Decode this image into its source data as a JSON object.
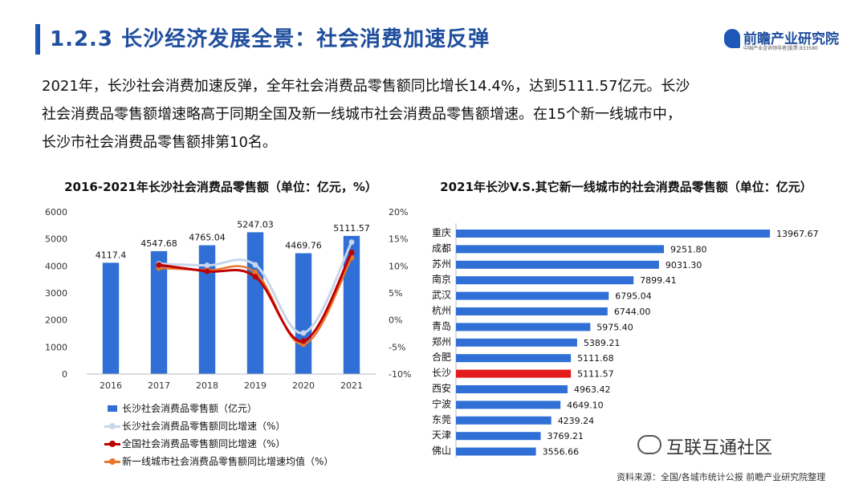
{
  "header": {
    "title": "1.2.3 长沙经济发展全景：社会消费加速反弹",
    "logo_name": "前瞻产业研究院",
    "logo_sub": "中国产业咨询领导者|股票:833580"
  },
  "intro": {
    "line1": "2021年，长沙社会消费加速反弹，全年社会消费品零售额同比增长14.4%，达到5111.57亿元。长沙",
    "line2": "社会消费品零售额增速略高于同期全国及新一线城市社会消费品零售额增速。在15个新一线城市中，",
    "line3": "长沙市社会消费品零售额排第10名。"
  },
  "footer": {
    "source": "资料来源：全国/各城市统计公报  前瞻产业研究院整理",
    "watermark": "互联互通社区"
  },
  "colors": {
    "title": "#1f4e9e",
    "bar": "#2f6fd6",
    "highlight": "#e31b1b",
    "series_changsha_growth": "#c8d6ec",
    "series_national": "#c00000",
    "series_newtier1": "#e8762c"
  },
  "chart_data": [
    {
      "type": "bar",
      "title": "2016-2021年长沙社会消费品零售额（单位：亿元，%）",
      "categories": [
        "2016",
        "2017",
        "2018",
        "2019",
        "2020",
        "2021"
      ],
      "series": [
        {
          "name": "长沙社会消费品零售额（亿元）",
          "type": "bar",
          "axis": "left",
          "values": [
            4117.4,
            4547.68,
            4765.04,
            5247.03,
            4469.76,
            5111.57
          ],
          "labels": [
            "4117.4",
            "4547.68",
            "4765.04",
            "5247.03",
            "4469.76",
            "5111.57"
          ]
        },
        {
          "name": "长沙社会消费品零售额同比增速（%）",
          "type": "line",
          "axis": "right",
          "values": [
            null,
            10.4,
            10.1,
            10.2,
            -2.4,
            14.4
          ]
        },
        {
          "name": "全国社会消费品零售额同比增速（%）",
          "type": "line",
          "axis": "right",
          "values": [
            null,
            10.2,
            9.0,
            8.0,
            -3.9,
            12.5
          ]
        },
        {
          "name": "新一线城市社会消费品零售额同比增速均值（%）",
          "type": "line",
          "axis": "right",
          "values": [
            null,
            9.6,
            9.2,
            8.8,
            -4.5,
            11.5
          ]
        }
      ],
      "left_axis": {
        "ylim": [
          0,
          6000
        ],
        "ticks": [
          "0",
          "1000",
          "2000",
          "3000",
          "4000",
          "5000",
          "6000"
        ]
      },
      "right_axis": {
        "ylim": [
          -10,
          20
        ],
        "ticks": [
          "-10%",
          "-5%",
          "0%",
          "5%",
          "10%",
          "15%",
          "20%"
        ]
      },
      "grid": false,
      "legend": "bottom"
    },
    {
      "type": "bar",
      "orientation": "horizontal",
      "title": "2021年长沙V.S.其它新一线城市的社会消费品零售额（单位：亿元）",
      "categories": [
        "重庆",
        "成都",
        "苏州",
        "南京",
        "武汉",
        "杭州",
        "青岛",
        "郑州",
        "合肥",
        "长沙",
        "西安",
        "宁波",
        "东莞",
        "天津",
        "佛山"
      ],
      "values": [
        13967.67,
        9251.8,
        9031.3,
        7899.41,
        6795.04,
        6744.0,
        5975.4,
        5389.21,
        5111.68,
        5111.57,
        4963.42,
        4649.1,
        4239.24,
        3769.21,
        3556.66
      ],
      "labels": [
        "13967.67",
        "9251.80",
        "9031.30",
        "7899.41",
        "6795.04",
        "6744.00",
        "5975.40",
        "5389.21",
        "5111.68",
        "5111.57",
        "4963.42",
        "4649.10",
        "4239.24",
        "3769.21",
        "3556.66"
      ],
      "highlight": "长沙",
      "xlim": [
        0,
        14000
      ],
      "grid": false
    }
  ]
}
